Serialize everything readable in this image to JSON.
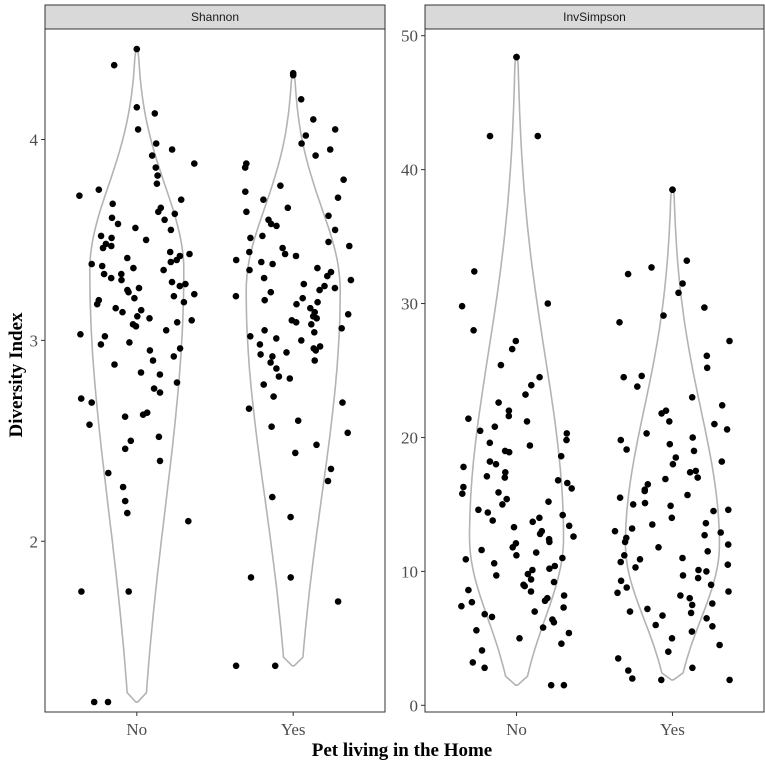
{
  "chart_data": {
    "type": "violin+jitter",
    "ylabel": "Diversity Index",
    "xlabel": "Pet living in the Home",
    "categories": [
      "No",
      "Yes"
    ],
    "grid": false,
    "panels": [
      {
        "title": "Shannon",
        "ylim": [
          1.15,
          4.55
        ],
        "yticks": [
          2,
          3,
          4
        ],
        "violins": [
          {
            "category": "No",
            "min": 1.2,
            "max": 4.45,
            "mode": 3.35
          },
          {
            "category": "Yes",
            "min": 1.38,
            "max": 4.33,
            "mode": 3.25
          }
        ],
        "points": {
          "No": [
            4.45,
            4.16,
            4.13,
            4.37,
            3.92,
            3.88,
            3.82,
            3.78,
            3.75,
            3.7,
            3.66,
            3.63,
            3.6,
            3.58,
            3.55,
            3.52,
            3.5,
            3.48,
            3.46,
            3.44,
            3.42,
            3.4,
            3.38,
            3.36,
            3.35,
            3.33,
            3.31,
            3.3,
            3.28,
            3.27,
            3.25,
            3.24,
            3.22,
            3.2,
            3.18,
            3.16,
            3.14,
            3.12,
            3.1,
            3.08,
            3.05,
            3.02,
            2.99,
            2.96,
            2.92,
            2.88,
            2.84,
            2.79,
            2.74,
            2.69,
            2.64,
            2.58,
            2.52,
            2.46,
            2.4,
            2.34,
            2.27,
            2.2,
            2.14,
            2.1,
            1.75,
            1.75,
            1.2,
            1.2,
            3.98,
            3.72,
            3.61,
            3.47,
            3.41,
            3.33,
            3.29,
            3.21,
            3.15,
            3.09,
            2.95,
            2.83,
            2.71,
            2.63,
            2.5,
            4.05,
            3.86,
            3.68,
            3.56,
            3.43,
            3.37,
            3.26,
            3.19,
            3.11,
            3.03,
            2.9,
            2.76,
            2.62,
            3.95,
            3.64,
            3.51,
            3.39,
            3.23,
            3.07,
            2.98
          ],
          "Yes": [
            4.33,
            4.32,
            4.2,
            4.1,
            4.05,
            3.98,
            3.92,
            3.86,
            3.8,
            3.74,
            3.7,
            3.66,
            3.62,
            3.58,
            3.55,
            3.52,
            3.49,
            3.46,
            3.43,
            3.4,
            3.38,
            3.36,
            3.34,
            3.32,
            3.3,
            3.28,
            3.26,
            3.24,
            3.22,
            3.2,
            3.18,
            3.16,
            3.14,
            3.12,
            3.1,
            3.08,
            3.06,
            3.04,
            3.02,
            3.0,
            2.98,
            2.96,
            2.94,
            2.92,
            2.9,
            2.86,
            2.82,
            2.78,
            2.72,
            2.66,
            2.6,
            2.54,
            2.48,
            2.44,
            2.36,
            2.3,
            2.22,
            2.12,
            1.82,
            1.82,
            1.7,
            1.38,
            1.38,
            4.02,
            3.77,
            3.64,
            3.51,
            3.44,
            3.35,
            3.27,
            3.19,
            3.11,
            3.01,
            2.93,
            2.81,
            2.69,
            2.57,
            3.88,
            3.71,
            3.57,
            3.47,
            3.39,
            3.31,
            3.21,
            3.13,
            3.05,
            2.97,
            2.89,
            3.95,
            3.6,
            3.42,
            3.25,
            3.09,
            2.95
          ]
        }
      },
      {
        "title": "InvSimpson",
        "ylim": [
          -0.5,
          50.5
        ],
        "yticks": [
          0,
          10,
          20,
          30,
          40,
          50
        ],
        "violins": [
          {
            "category": "No",
            "min": 1.5,
            "max": 48.4,
            "mode": 12.5
          },
          {
            "category": "Yes",
            "min": 1.9,
            "max": 38.5,
            "mode": 12.0
          }
        ],
        "points": {
          "No": [
            48.4,
            48.4,
            42.5,
            42.5,
            32.4,
            30.0,
            29.8,
            28.0,
            27.2,
            26.6,
            25.4,
            24.5,
            23.9,
            23.2,
            22.6,
            22.0,
            21.6,
            21.2,
            20.8,
            20.3,
            19.8,
            19.4,
            19.0,
            18.6,
            18.2,
            17.8,
            17.4,
            17.0,
            16.6,
            16.2,
            15.8,
            15.4,
            15.0,
            14.6,
            14.2,
            13.8,
            13.4,
            13.0,
            12.6,
            12.2,
            11.8,
            11.4,
            11.0,
            10.6,
            10.2,
            9.8,
            9.4,
            9.0,
            8.6,
            8.2,
            7.8,
            7.4,
            7.0,
            6.6,
            6.2,
            5.8,
            5.4,
            5.0,
            4.6,
            4.1,
            3.2,
            2.8,
            1.5,
            1.5,
            19.6,
            18.0,
            16.8,
            15.2,
            14.0,
            12.8,
            11.6,
            10.4,
            9.2,
            8.0,
            6.8,
            5.6,
            21.4,
            17.1,
            15.9,
            13.3,
            12.1,
            10.9,
            9.7,
            8.5,
            7.3,
            20.5,
            16.3,
            14.4,
            12.4,
            11.2,
            10.1,
            8.9,
            7.7,
            6.4,
            18.9,
            13.7
          ],
          "Yes": [
            38.5,
            38.5,
            33.2,
            32.7,
            32.2,
            31.5,
            30.8,
            29.7,
            29.1,
            28.6,
            27.2,
            26.1,
            25.2,
            24.6,
            23.8,
            23.0,
            22.4,
            21.8,
            21.2,
            20.6,
            20.0,
            19.5,
            19.0,
            18.5,
            18.0,
            17.5,
            17.0,
            16.5,
            16.0,
            15.5,
            15.0,
            14.5,
            14.0,
            13.5,
            13.0,
            12.5,
            12.0,
            11.5,
            11.0,
            10.5,
            10.0,
            9.5,
            9.0,
            8.5,
            8.0,
            7.5,
            7.0,
            6.5,
            6.0,
            5.5,
            5.0,
            4.5,
            4.0,
            3.5,
            2.8,
            2.6,
            2.0,
            1.9,
            1.9,
            22.0,
            19.8,
            18.2,
            16.9,
            15.7,
            14.6,
            13.6,
            12.7,
            11.8,
            10.9,
            10.1,
            9.3,
            8.4,
            7.6,
            6.7,
            21.0,
            17.4,
            15.1,
            13.2,
            11.2,
            9.7,
            8.2,
            6.9,
            24.5,
            20.3,
            16.1,
            12.2,
            10.3,
            8.8,
            7.2,
            5.9,
            19.1,
            14.9,
            12.9,
            10.7
          ]
        }
      }
    ]
  }
}
